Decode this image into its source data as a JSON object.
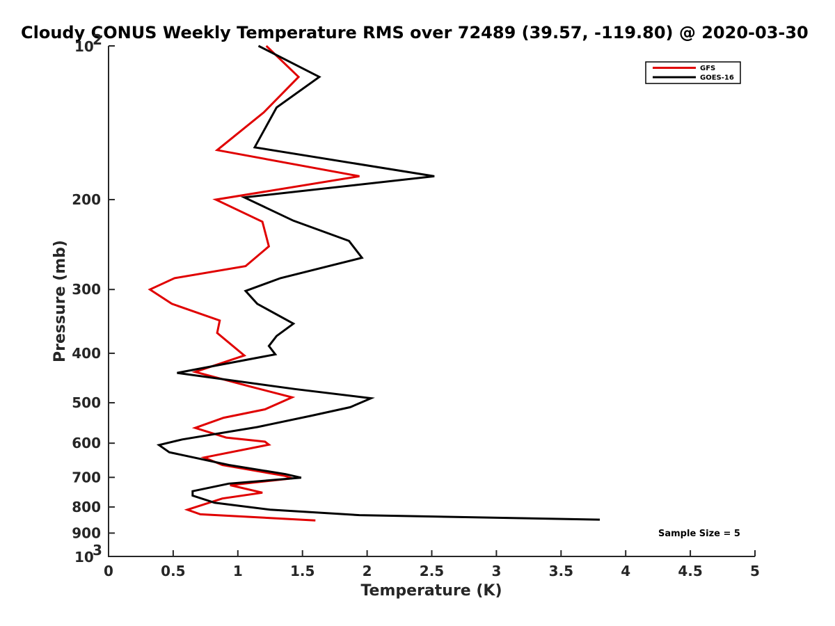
{
  "chart_data": {
    "type": "line",
    "title": "Cloudy CONUS Weekly Temperature RMS over 72489 (39.57, -119.80) @ 2020-03-30",
    "xlabel": "Temperature (K)",
    "ylabel": "Pressure (mb)",
    "xlim": [
      0,
      5
    ],
    "ylim": [
      100,
      1000
    ],
    "yscale": "log",
    "y_reversed": true,
    "grid": false,
    "legend_position": "top-right",
    "x_ticks": [
      "0",
      "0.5",
      "1",
      "1.5",
      "2",
      "2.5",
      "3",
      "3.5",
      "4",
      "4.5",
      "5"
    ],
    "x_tick_values": [
      0,
      0.5,
      1,
      1.5,
      2,
      2.5,
      3,
      3.5,
      4,
      4.5,
      5
    ],
    "y_ticks": [
      {
        "value": 100,
        "base": "10",
        "exp": "2"
      },
      {
        "value": 200,
        "label": "200"
      },
      {
        "value": 300,
        "label": "300"
      },
      {
        "value": 400,
        "label": "400"
      },
      {
        "value": 500,
        "label": "500"
      },
      {
        "value": 600,
        "label": "600"
      },
      {
        "value": 700,
        "label": "700"
      },
      {
        "value": 800,
        "label": "800"
      },
      {
        "value": 900,
        "label": "900"
      },
      {
        "value": 1000,
        "base": "10",
        "exp": "3"
      }
    ],
    "annotation": "Sample Size = 5",
    "series": [
      {
        "name": "GFS",
        "color": "#e00000",
        "points": [
          [
            1.22,
            100
          ],
          [
            1.47,
            115
          ],
          [
            1.2,
            135
          ],
          [
            0.84,
            160
          ],
          [
            1.94,
            180
          ],
          [
            0.83,
            200
          ],
          [
            1.19,
            221
          ],
          [
            1.24,
            247
          ],
          [
            1.06,
            270
          ],
          [
            0.51,
            285
          ],
          [
            0.32,
            300
          ],
          [
            0.49,
            320
          ],
          [
            0.86,
            345
          ],
          [
            0.84,
            365
          ],
          [
            1.05,
            404
          ],
          [
            0.67,
            435
          ],
          [
            1.1,
            465
          ],
          [
            1.42,
            488
          ],
          [
            1.21,
            515
          ],
          [
            0.89,
            535
          ],
          [
            0.67,
            560
          ],
          [
            0.91,
            585
          ],
          [
            1.21,
            596
          ],
          [
            1.24,
            604
          ],
          [
            0.74,
            640
          ],
          [
            0.88,
            662
          ],
          [
            1.36,
            695
          ],
          [
            1.42,
            703
          ],
          [
            0.94,
            725
          ],
          [
            1.19,
            750
          ],
          [
            0.88,
            770
          ],
          [
            0.61,
            810
          ],
          [
            0.71,
            827
          ],
          [
            1.6,
            850
          ]
        ]
      },
      {
        "name": "GOES-16",
        "color": "#000000",
        "points": [
          [
            1.16,
            100
          ],
          [
            1.63,
            115
          ],
          [
            1.3,
            132
          ],
          [
            1.13,
            158
          ],
          [
            2.52,
            180
          ],
          [
            1.05,
            198
          ],
          [
            1.43,
            220
          ],
          [
            1.86,
            241
          ],
          [
            1.96,
            260
          ],
          [
            1.33,
            285
          ],
          [
            1.06,
            302
          ],
          [
            1.15,
            320
          ],
          [
            1.43,
            350
          ],
          [
            1.3,
            370
          ],
          [
            1.24,
            387
          ],
          [
            1.29,
            402
          ],
          [
            0.53,
            437
          ],
          [
            1.44,
            470
          ],
          [
            2.03,
            490
          ],
          [
            1.87,
            510
          ],
          [
            1.57,
            530
          ],
          [
            1.15,
            558
          ],
          [
            0.57,
            590
          ],
          [
            0.39,
            605
          ],
          [
            0.47,
            625
          ],
          [
            0.93,
            662
          ],
          [
            1.37,
            690
          ],
          [
            1.49,
            701
          ],
          [
            0.93,
            720
          ],
          [
            0.65,
            745
          ],
          [
            0.65,
            760
          ],
          [
            0.82,
            785
          ],
          [
            1.25,
            810
          ],
          [
            1.94,
            830
          ],
          [
            3.8,
            847
          ]
        ]
      }
    ]
  }
}
